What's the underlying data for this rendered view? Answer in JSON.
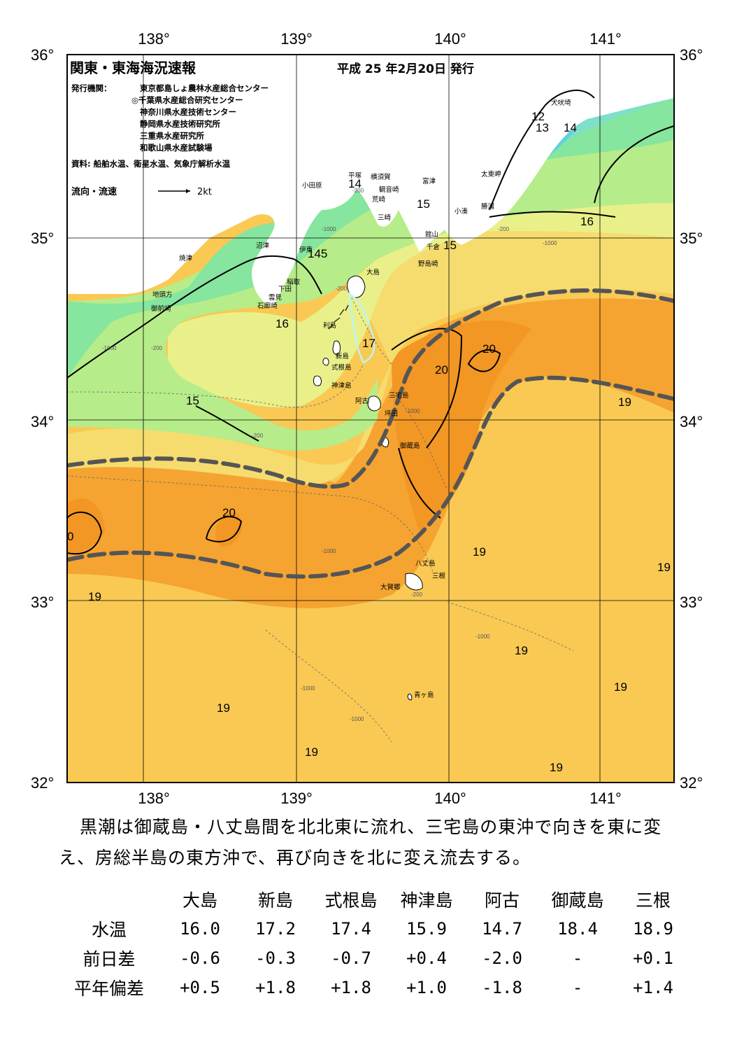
{
  "map": {
    "title": "関東・東海海況速報",
    "issue_date": "平成 25 年2月20日 発行",
    "issuer_label": "発行機関：",
    "issuers": [
      "東京都島しょ農林水産総合センター",
      "◎千葉県水産総合研究センター",
      "神奈川県水産技術センター",
      "静岡県水産技術研究所",
      "三重県水産研究所",
      "和歌山県水産試験場"
    ],
    "source": "資料: 船舶水温、衛星水温、気象庁解析水温",
    "flow_legend_label": "流向・流速",
    "flow_legend_value": "2kt",
    "lon_labels": [
      "138°",
      "139°",
      "140°",
      "141°"
    ],
    "lat_labels": [
      "36°",
      "35°",
      "34°",
      "33°",
      "32°"
    ],
    "place_names": [
      "犬吠埼",
      "太東岬",
      "勝浦",
      "小湊",
      "富津",
      "館山",
      "千倉",
      "野島崎",
      "横須賀",
      "観音崎",
      "荒崎",
      "三崎",
      "平塚",
      "小田原",
      "沼津",
      "伊東",
      "稲取",
      "下田",
      "雲見",
      "石廊崎",
      "焼津",
      "地頭方",
      "御前崎",
      "大島",
      "利島",
      "新島",
      "式根島",
      "神津島",
      "三宅島",
      "阿古",
      "坪田",
      "御蔵島",
      "八丈島",
      "三根",
      "大賀郷",
      "青ヶ島"
    ],
    "isotherm_labels": [
      "12",
      "13",
      "14",
      "14",
      "15",
      "15",
      "16",
      "16",
      "145",
      "17",
      "20",
      "20",
      "15",
      "19",
      "20",
      "0",
      "19",
      "19",
      "19",
      "19",
      "19",
      "19",
      "19",
      "19"
    ],
    "depth_labels": [
      "-200",
      "-1000"
    ],
    "colors": {
      "t12": "#4fb3e8",
      "t13": "#5fd1de",
      "t14": "#7ee0c8",
      "t15": "#86e59e",
      "t16": "#b7ec8a",
      "t17": "#e9f08a",
      "t18": "#f6dc6e",
      "t19": "#f9c954",
      "t20": "#f5a431",
      "t21": "#f29624",
      "kuroshio": "#555555"
    }
  },
  "summary": {
    "text": "黒潮は御蔵島・八丈島間を北北東に流れ、三宅島の東沖で向きを東に変え、房総半島の東方沖で、再び向きを北に変え流去する。"
  },
  "table": {
    "stations": [
      "大島",
      "新島",
      "式根島",
      "神津島",
      "阿古",
      "御蔵島",
      "三根"
    ],
    "rows": [
      {
        "label": "水温",
        "values": [
          "16.0",
          "17.2",
          "17.4",
          "15.9",
          "14.7",
          "18.4",
          "18.9"
        ]
      },
      {
        "label": "前日差",
        "values": [
          "-0.6",
          "-0.3",
          "-0.7",
          "+0.4",
          "-2.0",
          "-",
          "+0.1"
        ]
      },
      {
        "label": "平年偏差",
        "values": [
          "+0.5",
          "+1.8",
          "+1.8",
          "+1.0",
          "-1.8",
          "-",
          "+1.4"
        ]
      }
    ]
  }
}
